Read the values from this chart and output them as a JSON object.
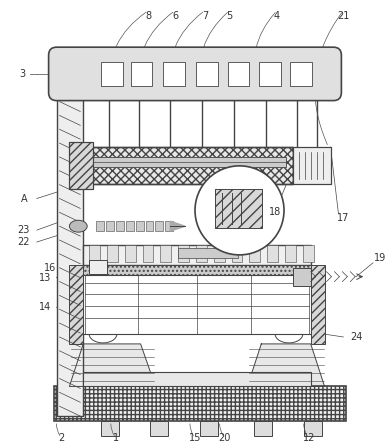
{
  "bg_color": "#ffffff",
  "lc": "#444444",
  "lw": 0.7,
  "fig_width": 3.9,
  "fig_height": 4.44
}
